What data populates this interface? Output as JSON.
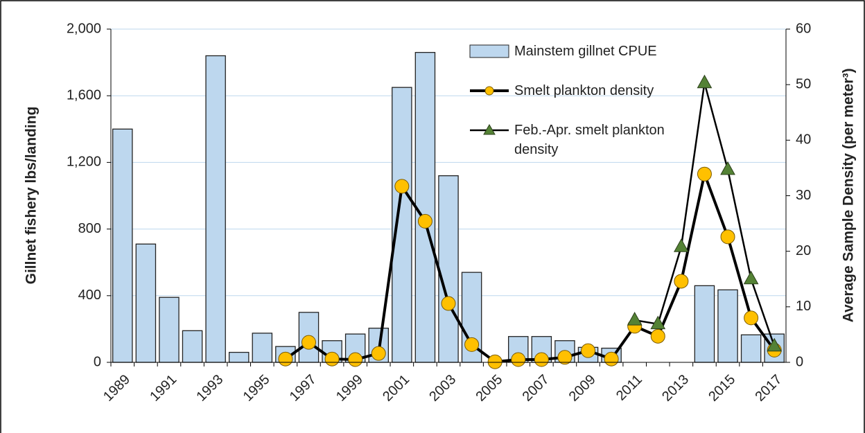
{
  "chart_data": {
    "type": "bar-line",
    "ylabel": "Gillnet fishery lbs/landing",
    "y2label": "Average Sample Density (per meter³)",
    "categories": [
      "1989",
      null,
      "1991",
      null,
      "1993",
      null,
      "1995",
      null,
      "1997",
      null,
      "1999",
      null,
      "2001",
      null,
      "2003",
      null,
      "2005",
      null,
      "2007",
      null,
      "2009",
      null,
      "2011",
      null,
      "2013",
      null,
      "2015",
      null,
      "2017"
    ],
    "ylim": [
      0,
      2000
    ],
    "yticks": [
      0,
      400,
      800,
      {
        "value": 1200,
        "label": "1,200"
      },
      {
        "value": 1600,
        "label": "1,600"
      },
      {
        "value": 2000,
        "label": "2,000"
      }
    ],
    "y2lim": [
      0,
      60
    ],
    "y2ticks": [
      0,
      10,
      20,
      30,
      40,
      50,
      60
    ],
    "grid": true,
    "series": [
      {
        "name": "Mainstem gillnet CPUE",
        "kind": "bar",
        "color": "#bdd7ee",
        "values": [
          1400,
          710,
          390,
          190,
          1840,
          60,
          175,
          95,
          300,
          130,
          170,
          205,
          1650,
          1860,
          1120,
          540,
          null,
          155,
          155,
          130,
          90,
          85,
          null,
          null,
          null,
          460,
          435,
          165,
          170
        ]
      },
      {
        "name": "Smelt plankton density",
        "kind": "line",
        "marker": "circle",
        "color": "#ffc000",
        "axis": "y2",
        "values": [
          null,
          null,
          null,
          null,
          null,
          null,
          null,
          0.6,
          3.6,
          0.6,
          0.5,
          1.6,
          31.7,
          25.4,
          10.6,
          3.2,
          0.1,
          0.5,
          0.5,
          0.9,
          2.1,
          0.6,
          6.5,
          4.7,
          14.6,
          33.9,
          22.6,
          8.0,
          2.2
        ]
      },
      {
        "name": "Feb.-Apr. smelt plankton density",
        "kind": "line",
        "marker": "triangle",
        "color": "#548235",
        "axis": "y2",
        "values": [
          null,
          null,
          null,
          null,
          null,
          null,
          null,
          null,
          null,
          null,
          null,
          null,
          null,
          null,
          null,
          null,
          null,
          null,
          null,
          null,
          null,
          null,
          7.6,
          6.9,
          20.8,
          50.3,
          34.7,
          15.0,
          2.9
        ]
      }
    ]
  }
}
